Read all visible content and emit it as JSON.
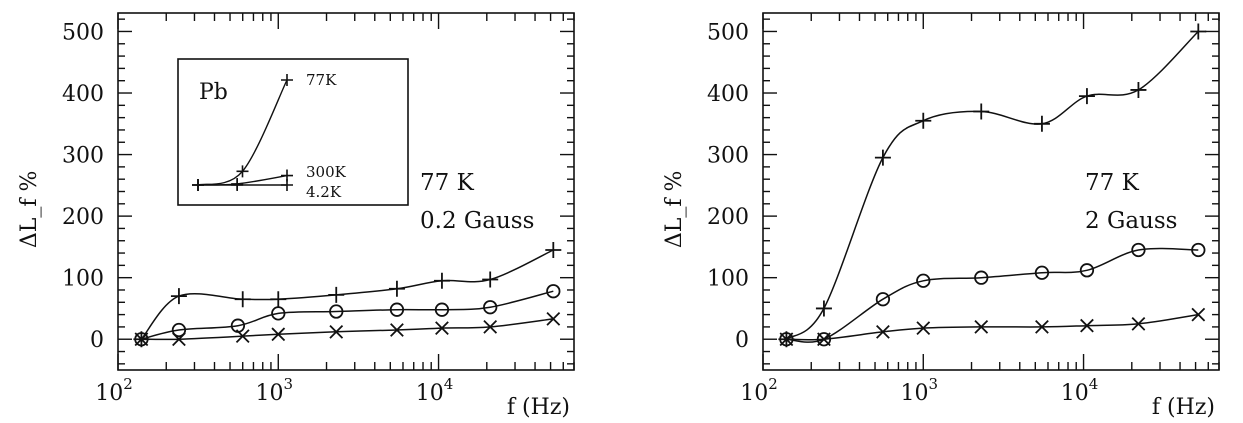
{
  "chart_data": [
    {
      "type": "line",
      "x_scale": "log",
      "xlim": [
        100,
        70000
      ],
      "ylim": [
        -50,
        530
      ],
      "xlabel": "f (Hz)",
      "ylabel": "ΔL_f %",
      "x_tick_labels": [
        {
          "base": "10",
          "exp": "2"
        },
        {
          "base": "10",
          "exp": "3"
        },
        {
          "base": "10",
          "exp": "4"
        }
      ],
      "y_tick_labels": [
        "0",
        "100",
        "200",
        "300",
        "400",
        "500"
      ],
      "annotations": [
        "77 K",
        "0.2 Gauss"
      ],
      "series": [
        {
          "marker": "plus",
          "x": [
            140,
            240,
            600,
            1000,
            2300,
            5500,
            10500,
            21000,
            52000
          ],
          "y": [
            0,
            70,
            65,
            65,
            72,
            82,
            95,
            97,
            145
          ]
        },
        {
          "marker": "circle",
          "x": [
            140,
            240,
            560,
            1000,
            2300,
            5500,
            10500,
            21000,
            52000
          ],
          "y": [
            0,
            15,
            22,
            42,
            45,
            48,
            48,
            52,
            78
          ]
        },
        {
          "marker": "cross",
          "x": [
            140,
            240,
            600,
            1000,
            2300,
            5500,
            10500,
            21000,
            52000
          ],
          "y": [
            0,
            0,
            5,
            8,
            12,
            15,
            18,
            20,
            33
          ]
        }
      ],
      "inset": {
        "title": "Pb",
        "curves": [
          {
            "label": "77K",
            "points": [
              [
                0.0,
                0.0
              ],
              [
                0.25,
                0.13
              ],
              [
                0.5,
                1.0
              ]
            ]
          },
          {
            "label": "300K",
            "points": [
              [
                0.0,
                0.0
              ],
              [
                0.22,
                0.01
              ],
              [
                0.5,
                0.09
              ]
            ]
          },
          {
            "label": "4.2K",
            "points": [
              [
                0.0,
                0.0
              ],
              [
                0.22,
                0.0
              ],
              [
                0.5,
                0.0
              ]
            ]
          }
        ]
      }
    },
    {
      "type": "line",
      "x_scale": "log",
      "xlim": [
        100,
        70000
      ],
      "ylim": [
        -50,
        530
      ],
      "xlabel": "f (Hz)",
      "ylabel": "ΔL_f %",
      "x_tick_labels": [
        {
          "base": "10",
          "exp": "2"
        },
        {
          "base": "10",
          "exp": "3"
        },
        {
          "base": "10",
          "exp": "4"
        }
      ],
      "y_tick_labels": [
        "0",
        "100",
        "200",
        "300",
        "400",
        "500"
      ],
      "annotations": [
        "77 K",
        "2 Gauss"
      ],
      "series": [
        {
          "marker": "plus",
          "x": [
            140,
            240,
            560,
            1000,
            2300,
            5500,
            10500,
            22000,
            52000
          ],
          "y": [
            0,
            50,
            295,
            355,
            370,
            350,
            395,
            405,
            500
          ]
        },
        {
          "marker": "circle",
          "x": [
            140,
            240,
            560,
            1000,
            2300,
            5500,
            10500,
            22000,
            52000
          ],
          "y": [
            0,
            0,
            65,
            95,
            100,
            108,
            112,
            145,
            145
          ]
        },
        {
          "marker": "cross",
          "x": [
            140,
            240,
            560,
            1000,
            2300,
            5500,
            10500,
            22000,
            52000
          ],
          "y": [
            0,
            0,
            12,
            18,
            20,
            20,
            22,
            25,
            40
          ]
        }
      ]
    }
  ]
}
